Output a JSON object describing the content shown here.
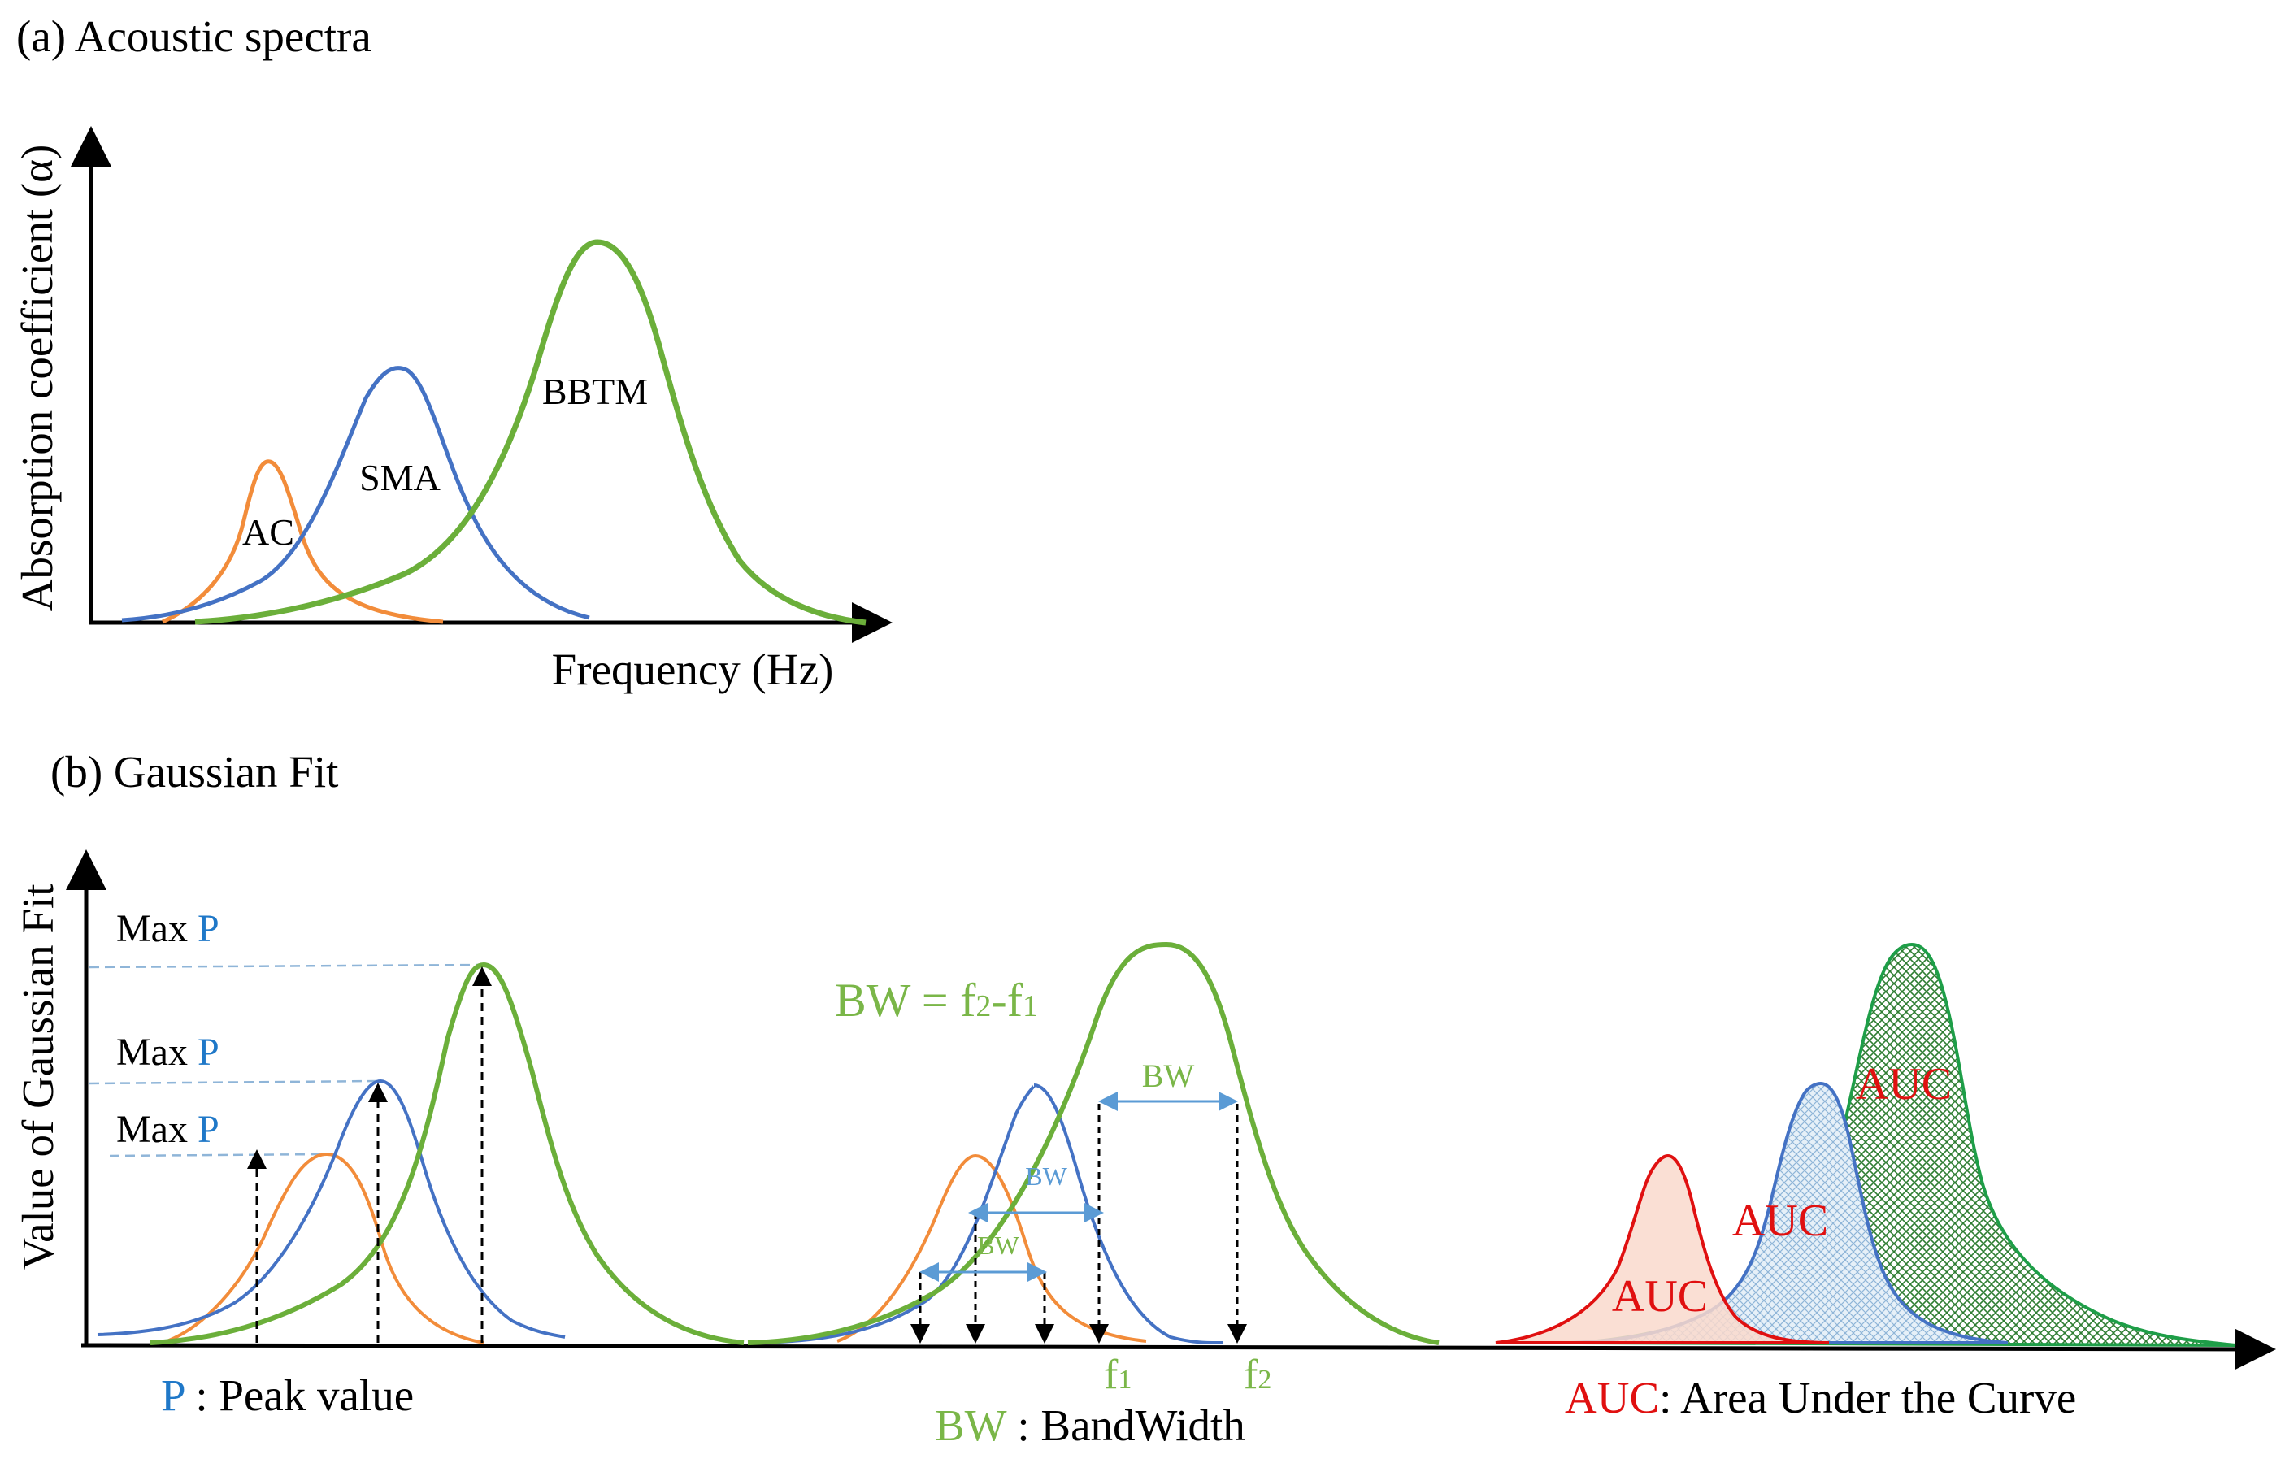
{
  "panel_a": {
    "title": "(a) Acoustic spectra",
    "y_label": "Absorption coefficient  (α)",
    "x_label": "Frequency (Hz)",
    "curves": [
      {
        "label": "AC",
        "color": "#F28C3A"
      },
      {
        "label": "SMA",
        "color": "#4472C4"
      },
      {
        "label": "BBTM",
        "color": "#6BAF3A"
      }
    ]
  },
  "panel_b": {
    "title": "(b) Gaussian Fit",
    "y_label": "Value  of Gaussian Fit",
    "peak": {
      "max_prefix": "Max ",
      "p_letter": "P",
      "legend_letter": "P",
      "legend_text": " : Peak value"
    },
    "bandwidth": {
      "formula_prefix": "BW = f",
      "formula_sub2": "2",
      "formula_mid": "-f",
      "formula_sub1": "1",
      "bw_tag": "BW",
      "f1_label": "f",
      "f1_sub": "1",
      "f2_label": "f",
      "f2_sub": "2",
      "legend_abbr": "BW",
      "legend_text": " : BandWidth"
    },
    "auc": {
      "tag": "AUC",
      "legend_abbr": "AUC",
      "legend_text": ": Area Under the Curve"
    }
  },
  "colors": {
    "orange": "#F28C3A",
    "blue": "#4472C4",
    "green": "#6BAF3A",
    "red": "#E01010",
    "auc_green": "#1E9E48",
    "p_blue": "#1F78C8",
    "bw_green": "#7AB648",
    "axis": "#000000"
  }
}
